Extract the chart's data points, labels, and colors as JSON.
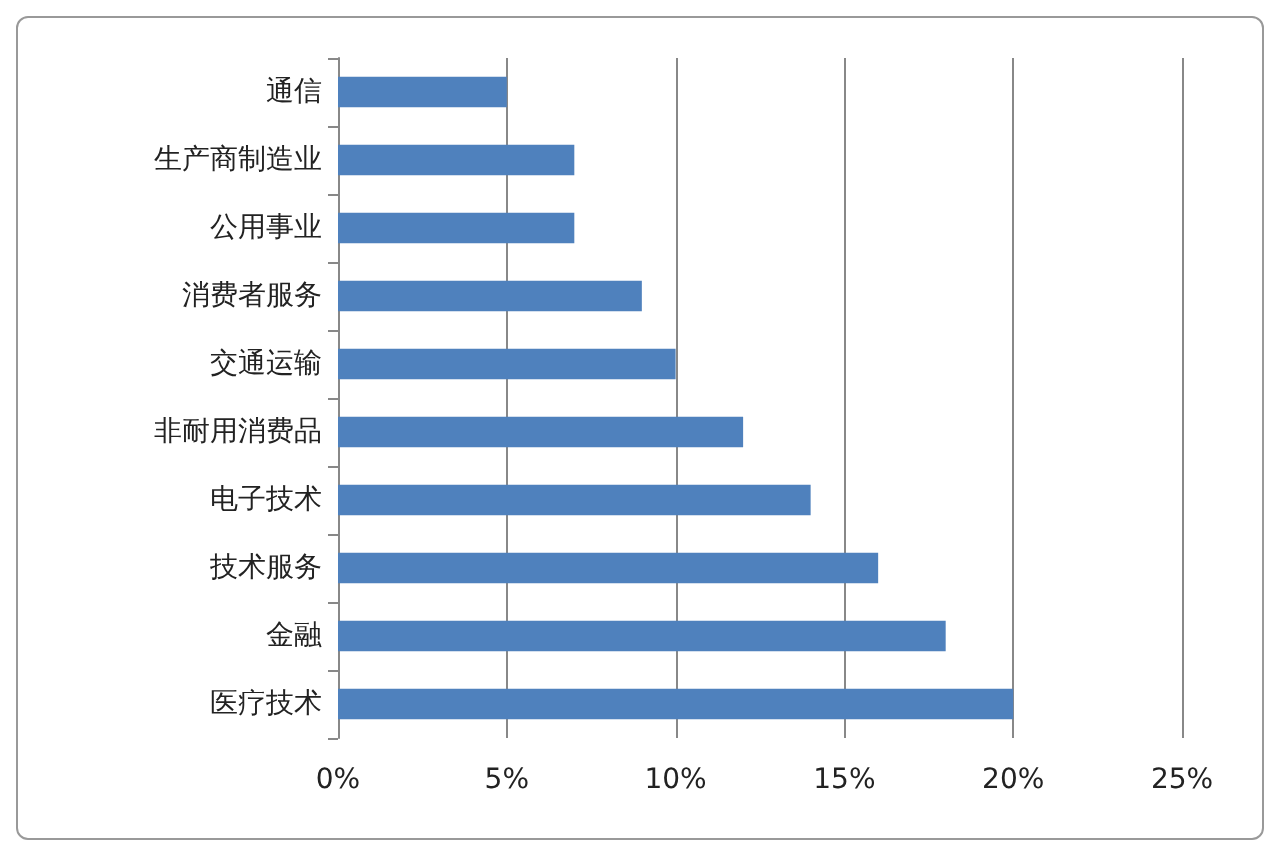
{
  "chart_data": {
    "type": "bar",
    "orientation": "horizontal",
    "categories": [
      "通信",
      "生产商制造业",
      "公用事业",
      "消费者服务",
      "交通运输",
      "非耐用消费品",
      "电子技术",
      "技术服务",
      "金融",
      "医疗技术"
    ],
    "values": [
      5,
      7,
      7,
      9,
      10,
      12,
      14,
      16,
      18,
      20
    ],
    "color": "#4f81bd",
    "xlim": [
      0,
      25
    ],
    "xticks": [
      {
        "value": 0,
        "label": "0%"
      },
      {
        "value": 5,
        "label": "5%"
      },
      {
        "value": 10,
        "label": "10%"
      },
      {
        "value": 15,
        "label": "15%"
      },
      {
        "value": 20,
        "label": "20%"
      },
      {
        "value": 25,
        "label": "25%"
      }
    ],
    "grid": "x"
  }
}
